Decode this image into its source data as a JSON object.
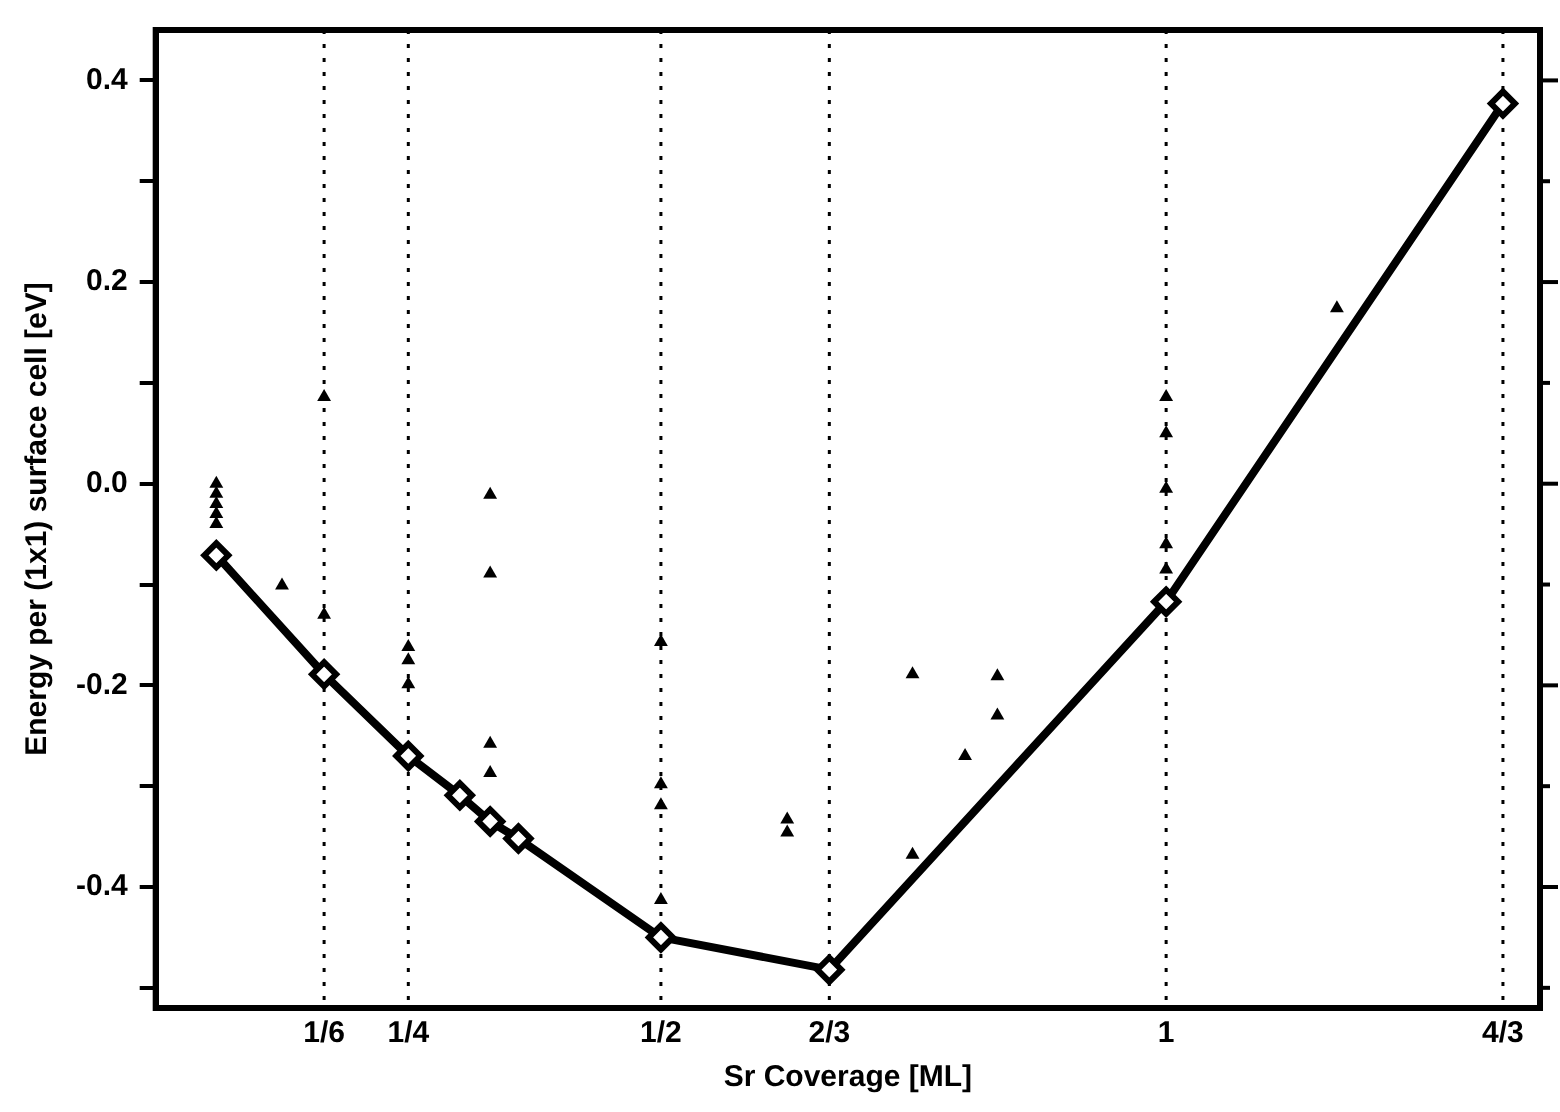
{
  "chart_data": {
    "type": "scatter",
    "xlabel": "Sr Coverage [ML]",
    "ylabel": "Energy per (1x1) surface cell [eV]",
    "xlim": [
      0,
      1.37
    ],
    "xticks": [
      {
        "value": 0.16667,
        "label": "1/6"
      },
      {
        "value": 0.25,
        "label": "1/4"
      },
      {
        "value": 0.5,
        "label": "1/2"
      },
      {
        "value": 0.66667,
        "label": "2/3"
      },
      1,
      {
        "value": 1.33333,
        "label": "4/3"
      }
    ],
    "ylim": [
      -0.52,
      0.45
    ],
    "yticks": [
      {
        "value": -0.5,
        "label": null
      },
      -0.4,
      {
        "value": -0.3,
        "label": null
      },
      -0.2,
      {
        "value": -0.1,
        "label": null
      },
      {
        "value": 0,
        "label": "0.0"
      },
      {
        "value": 0.1,
        "label": null
      },
      0.2,
      {
        "value": 0.3,
        "label": null
      },
      0.4
    ],
    "grid": "x",
    "series": [
      {
        "type": "scatter",
        "color": "#000000",
        "marker": "triangle",
        "x": [
          0.06,
          0.06,
          0.06,
          0.06,
          0.06,
          0.094,
          0.125,
          0.16667,
          0.16667,
          0.25,
          0.25,
          0.25,
          0.331,
          0.331,
          0.331,
          0.331,
          0.5,
          0.5,
          0.5,
          0.5,
          0.625,
          0.625,
          0.749,
          0.749,
          0.801,
          0.833,
          0.833,
          1,
          1,
          1,
          1,
          1,
          1.169
        ],
        "values": [
          0.0,
          -0.01,
          -0.02,
          -0.03,
          -0.04,
          null,
          -0.101,
          0.086,
          -0.13,
          -0.162,
          -0.175,
          -0.199,
          -0.011,
          -0.089,
          -0.258,
          -0.287,
          -0.157,
          -0.298,
          -0.319,
          -0.413,
          -0.333,
          -0.346,
          -0.189,
          -0.368,
          -0.27,
          -0.191,
          -0.23,
          0.086,
          0.05,
          -0.005,
          -0.06,
          -0.085,
          0.174
        ]
      },
      {
        "type": "line",
        "color": "#000000",
        "marker": "diamond",
        "x": [
          0.06,
          0.16667,
          0.25,
          0.301,
          0.331,
          0.359,
          0.5,
          0.66667,
          1,
          1.33333
        ],
        "values": [
          -0.071,
          -0.189,
          -0.27,
          -0.309,
          -0.335,
          -0.352,
          -0.45,
          -0.482,
          -0.117,
          0.377
        ]
      }
    ]
  }
}
